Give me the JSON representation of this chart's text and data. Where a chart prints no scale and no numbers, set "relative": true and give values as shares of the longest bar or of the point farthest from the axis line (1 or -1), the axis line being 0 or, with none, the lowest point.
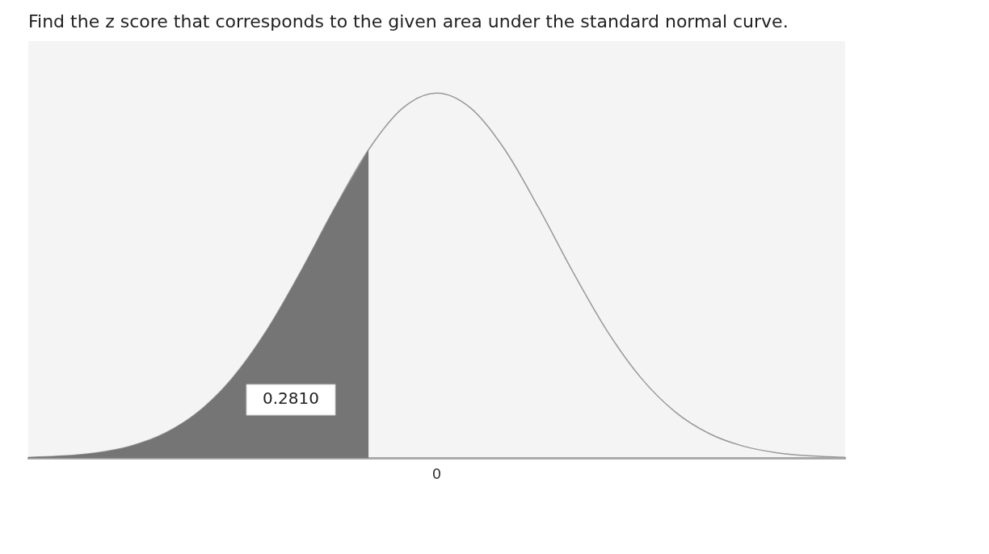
{
  "chart_data": {
    "type": "line",
    "title": "Find the z score that corresponds to the given area under the standard normal curve.",
    "categories": [
      null,
      null,
      null,
      null,
      null,
      null,
      null,
      null,
      null,
      null,
      null,
      null,
      null,
      null,
      null,
      null,
      null,
      null,
      null,
      null,
      null,
      null,
      null,
      null,
      null
    ],
    "relative": true,
    "grid": false,
    "legend": false,
    "marker": "none",
    "series": [
      {
        "type": "line",
        "color": "#999999",
        "values": [
          0.0023,
          0.0062,
          0.0149,
          0.0332,
          0.0678,
          0.1274,
          0.2201,
          0.3495,
          0.5103,
          0.6849,
          0.8452,
          0.9588,
          1,
          0.9588,
          0.8452,
          0.6849,
          0.5103,
          0.3495,
          0.2201,
          0.1274,
          0.0678,
          0.0332,
          0.0149,
          0.0062,
          0.0023
        ]
      },
      {
        "type": "area",
        "color": "#757575",
        "values": [
          0.0023,
          0.0062,
          0.0149,
          0.0332,
          0.0678,
          0.1274,
          0.2201,
          0.3495,
          0.5103,
          0.6849,
          0.8452,
          null,
          null,
          null,
          null,
          null,
          null,
          null,
          null,
          null,
          null,
          null,
          null,
          null,
          null
        ]
      }
    ],
    "annotations": [
      "0.2810",
      "0"
    ]
  }
}
